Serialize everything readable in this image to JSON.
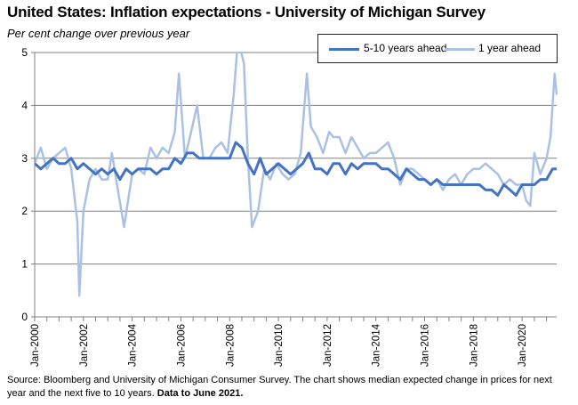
{
  "title": "United States: Inflation expectations - University of Michigan Survey",
  "subtitle": "Per cent change over previous year",
  "source": "Source: Bloomberg and University of Michigan Consumer Survey.  The chart shows median expected change in prices for next year and the next five to 10 years.",
  "source_bold": "Data to June 2021.",
  "colors": {
    "long_term": "#4472C4",
    "short_term": "#A9C1E4",
    "grid": "#808080",
    "axis": "#808080"
  },
  "chart_data": {
    "type": "line",
    "title": "",
    "xlabel": "",
    "ylabel": "",
    "ylim": [
      0,
      5
    ],
    "yticks": [
      0,
      1,
      2,
      3,
      4,
      5
    ],
    "grid": true,
    "legend": "top-right",
    "xticks": [
      "Jan-2000",
      "Jan-2002",
      "Jan-2004",
      "Jan-2006",
      "Jan-2008",
      "Jan-2010",
      "Jan-2012",
      "Jan-2014",
      "Jan-2016",
      "Jan-2018",
      "Jan-2020"
    ],
    "x_start": "Jan-2000",
    "x_end": "Jun-2021",
    "series": [
      {
        "name": "5-10 years ahead",
        "x": [
          "2000-01",
          "2000-04",
          "2000-07",
          "2000-10",
          "2001-01",
          "2001-04",
          "2001-07",
          "2001-10",
          "2002-01",
          "2002-04",
          "2002-07",
          "2002-10",
          "2003-01",
          "2003-04",
          "2003-07",
          "2003-10",
          "2004-01",
          "2004-04",
          "2004-07",
          "2004-10",
          "2005-01",
          "2005-04",
          "2005-07",
          "2005-10",
          "2006-01",
          "2006-04",
          "2006-07",
          "2006-10",
          "2007-01",
          "2007-04",
          "2007-07",
          "2007-10",
          "2008-01",
          "2008-04",
          "2008-07",
          "2008-10",
          "2009-01",
          "2009-04",
          "2009-07",
          "2009-10",
          "2010-01",
          "2010-04",
          "2010-07",
          "2010-10",
          "2011-01",
          "2011-04",
          "2011-07",
          "2011-10",
          "2012-01",
          "2012-04",
          "2012-07",
          "2012-10",
          "2013-01",
          "2013-04",
          "2013-07",
          "2013-10",
          "2014-01",
          "2014-04",
          "2014-07",
          "2014-10",
          "2015-01",
          "2015-04",
          "2015-07",
          "2015-10",
          "2016-01",
          "2016-04",
          "2016-07",
          "2016-10",
          "2017-01",
          "2017-04",
          "2017-07",
          "2017-10",
          "2018-01",
          "2018-04",
          "2018-07",
          "2018-10",
          "2019-01",
          "2019-04",
          "2019-07",
          "2019-10",
          "2020-01",
          "2020-04",
          "2020-07",
          "2020-10",
          "2021-01",
          "2021-04",
          "2021-06"
        ],
        "values": [
          2.9,
          2.8,
          2.9,
          3.0,
          2.9,
          2.9,
          3.0,
          2.8,
          2.9,
          2.8,
          2.7,
          2.8,
          2.7,
          2.8,
          2.6,
          2.8,
          2.7,
          2.8,
          2.8,
          2.8,
          2.7,
          2.8,
          2.8,
          3.0,
          2.9,
          3.1,
          3.1,
          3.0,
          3.0,
          3.0,
          3.0,
          3.0,
          3.0,
          3.3,
          3.2,
          2.9,
          2.7,
          3.0,
          2.7,
          2.8,
          2.9,
          2.8,
          2.7,
          2.8,
          2.9,
          3.1,
          2.8,
          2.8,
          2.7,
          2.9,
          2.9,
          2.7,
          2.9,
          2.8,
          2.9,
          2.9,
          2.9,
          2.8,
          2.8,
          2.7,
          2.6,
          2.8,
          2.7,
          2.6,
          2.6,
          2.5,
          2.6,
          2.5,
          2.5,
          2.5,
          2.5,
          2.5,
          2.5,
          2.5,
          2.4,
          2.4,
          2.3,
          2.5,
          2.4,
          2.3,
          2.5,
          2.5,
          2.5,
          2.6,
          2.6,
          2.8,
          2.8
        ]
      },
      {
        "name": "1 year ahead",
        "x": [
          "2000-01",
          "2000-04",
          "2000-07",
          "2000-10",
          "2001-01",
          "2001-04",
          "2001-07",
          "2001-10",
          "2001-11",
          "2002-01",
          "2002-04",
          "2002-07",
          "2002-10",
          "2003-01",
          "2003-03",
          "2003-06",
          "2003-09",
          "2004-01",
          "2004-04",
          "2004-07",
          "2004-10",
          "2005-01",
          "2005-04",
          "2005-07",
          "2005-10",
          "2005-12",
          "2006-03",
          "2006-06",
          "2006-09",
          "2006-12",
          "2007-03",
          "2007-06",
          "2007-09",
          "2007-12",
          "2008-03",
          "2008-05",
          "2008-06",
          "2008-08",
          "2008-10",
          "2008-12",
          "2009-03",
          "2009-06",
          "2009-09",
          "2009-12",
          "2010-03",
          "2010-06",
          "2010-09",
          "2010-12",
          "2011-03",
          "2011-05",
          "2011-08",
          "2011-11",
          "2012-02",
          "2012-04",
          "2012-07",
          "2012-10",
          "2013-01",
          "2013-04",
          "2013-07",
          "2013-10",
          "2014-01",
          "2014-04",
          "2014-07",
          "2014-10",
          "2015-01",
          "2015-04",
          "2015-07",
          "2015-10",
          "2016-01",
          "2016-04",
          "2016-07",
          "2016-10",
          "2017-01",
          "2017-04",
          "2017-07",
          "2017-10",
          "2018-01",
          "2018-04",
          "2018-07",
          "2018-10",
          "2019-01",
          "2019-04",
          "2019-07",
          "2019-10",
          "2020-01",
          "2020-03",
          "2020-05",
          "2020-07",
          "2020-10",
          "2021-01",
          "2021-03",
          "2021-05",
          "2021-06"
        ],
        "values": [
          2.9,
          3.2,
          2.8,
          3.0,
          3.1,
          3.2,
          2.8,
          1.8,
          0.4,
          2.0,
          2.6,
          2.8,
          2.6,
          2.6,
          3.1,
          2.4,
          1.7,
          2.7,
          2.8,
          2.7,
          3.2,
          3.0,
          3.2,
          3.1,
          3.5,
          4.6,
          3.0,
          3.5,
          4.0,
          3.0,
          3.0,
          3.2,
          3.3,
          3.1,
          4.2,
          5.2,
          5.1,
          4.8,
          3.0,
          1.7,
          2.0,
          2.8,
          2.6,
          2.9,
          2.7,
          2.6,
          2.7,
          3.1,
          4.6,
          3.6,
          3.4,
          3.1,
          3.5,
          3.4,
          3.4,
          3.1,
          3.4,
          3.2,
          3.0,
          3.1,
          3.1,
          3.2,
          3.3,
          3.0,
          2.5,
          2.8,
          2.8,
          2.7,
          2.6,
          2.5,
          2.6,
          2.4,
          2.6,
          2.7,
          2.5,
          2.7,
          2.8,
          2.8,
          2.9,
          2.8,
          2.7,
          2.5,
          2.6,
          2.5,
          2.5,
          2.2,
          2.1,
          3.1,
          2.7,
          3.0,
          3.4,
          4.6,
          4.2
        ]
      }
    ]
  }
}
